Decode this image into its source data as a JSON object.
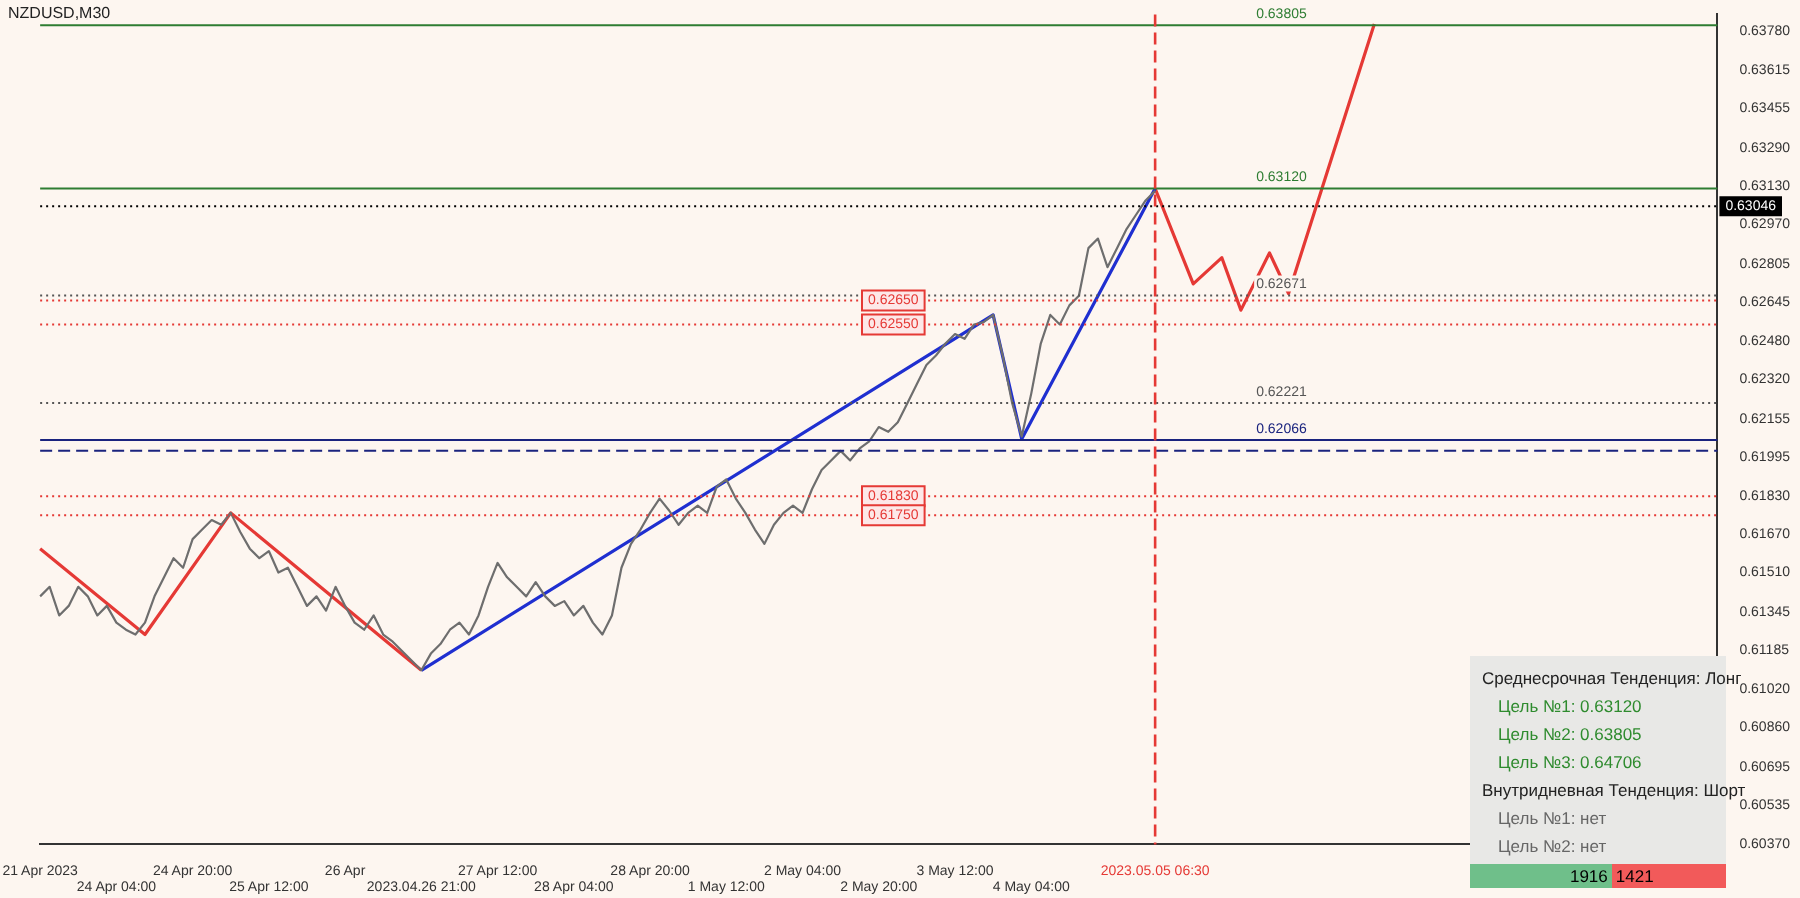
{
  "chart_data": {
    "type": "line",
    "title": "NZDUSD,M30",
    "categories": [
      "21 Apr 2023",
      null,
      null,
      null,
      null,
      null,
      null,
      null,
      "24 Apr 04:00",
      null,
      null,
      null,
      null,
      null,
      null,
      null,
      "24 Apr 20:00",
      null,
      null,
      null,
      null,
      null,
      null,
      null,
      "25 Apr 12:00",
      null,
      null,
      null,
      null,
      null,
      null,
      null,
      "26 Apr",
      null,
      null,
      null,
      null,
      null,
      null,
      null,
      "2023.04.26 21:00",
      null,
      null,
      null,
      null,
      null,
      null,
      null,
      "27 Apr 12:00",
      null,
      null,
      null,
      null,
      null,
      null,
      null,
      "28 Apr 04:00",
      null,
      null,
      null,
      null,
      null,
      null,
      null,
      "28 Apr 20:00",
      null,
      null,
      null,
      null,
      null,
      null,
      null,
      "1 May 12:00",
      null,
      null,
      null,
      null,
      null,
      null,
      null,
      "2 May 04:00",
      null,
      null,
      null,
      null,
      null,
      null,
      null,
      "2 May 20:00",
      null,
      null,
      null,
      null,
      null,
      null,
      null,
      "3 May 12:00",
      null,
      null,
      null,
      null,
      null,
      null,
      null,
      "4 May 04:00",
      null,
      null,
      null,
      null,
      null,
      null,
      null,
      null,
      null,
      null,
      null,
      null,
      "2023.05.05 06:30",
      null,
      null,
      null,
      null,
      null,
      null,
      null,
      null,
      null,
      null,
      null,
      null,
      null,
      null,
      null,
      null,
      null,
      null,
      null,
      null,
      null,
      null,
      null,
      null,
      null,
      null,
      null,
      null,
      null,
      null,
      null,
      null,
      null,
      null,
      null,
      null,
      null,
      null,
      null,
      null,
      null,
      null,
      null,
      null,
      null,
      null,
      null,
      null,
      null,
      null,
      null,
      null,
      null,
      null,
      null,
      null,
      null,
      null,
      null
    ],
    "series": [
      {
        "color": "#6e6e6e",
        "values": [
          0.6141,
          0.6145,
          0.6133,
          0.6137,
          0.6145,
          0.6141,
          0.6133,
          0.6137,
          0.613,
          0.6127,
          0.6125,
          0.613,
          0.6141,
          0.6149,
          0.6157,
          0.6153,
          0.6165,
          0.6169,
          0.6173,
          0.6171,
          0.6176,
          0.6168,
          0.6161,
          0.6157,
          0.616,
          0.6151,
          0.6153,
          0.6145,
          0.6137,
          0.6141,
          0.6135,
          0.6145,
          0.6137,
          0.613,
          0.6127,
          0.6133,
          0.6125,
          0.6122,
          0.6118,
          0.6114,
          0.611,
          0.6117,
          0.6121,
          0.6127,
          0.613,
          0.6125,
          0.6133,
          0.6145,
          0.6155,
          0.6149,
          0.6145,
          0.6141,
          0.6147,
          0.6141,
          0.6137,
          0.6139,
          0.6133,
          0.6137,
          0.613,
          0.6125,
          0.6133,
          0.6153,
          0.6163,
          0.6169,
          0.6176,
          0.6182,
          0.6177,
          0.6171,
          0.6176,
          0.6179,
          0.6176,
          0.6187,
          0.619,
          0.6182,
          0.6176,
          0.6169,
          0.6163,
          0.6171,
          0.6176,
          0.6179,
          0.6176,
          0.6186,
          0.6194,
          0.6198,
          0.6202,
          0.6198,
          0.6203,
          0.6206,
          0.6212,
          0.621,
          0.6214,
          0.6222,
          0.623,
          0.6238,
          0.6242,
          0.6247,
          0.6251,
          0.6249,
          0.6255,
          0.6256,
          0.6259,
          0.6242,
          0.6222,
          0.6208,
          0.6226,
          0.6247,
          0.6259,
          0.6255,
          0.6263,
          0.6267,
          0.6287,
          0.6291,
          0.6279,
          0.6287,
          0.6295,
          0.6301,
          0.6307,
          0.6311,
          null,
          null,
          null,
          null,
          null,
          null,
          null,
          null,
          null,
          null,
          null,
          null,
          null,
          null,
          null,
          null,
          null,
          null,
          null,
          null,
          null,
          null,
          null,
          null,
          null,
          null,
          null,
          null,
          null,
          null,
          null,
          null,
          null,
          null,
          null,
          null,
          null,
          null,
          null,
          null,
          null,
          null,
          null,
          null,
          null,
          null,
          null,
          null,
          null,
          null,
          null,
          null,
          null,
          null,
          null,
          null,
          null,
          null,
          null
        ]
      },
      {
        "color": "#e53935",
        "values": [
          0.6161,
          null,
          null,
          null,
          null,
          null,
          null,
          null,
          null,
          null,
          null,
          0.6125,
          null,
          null,
          null,
          null,
          null,
          null,
          null,
          null,
          0.6176,
          null,
          null,
          null,
          null,
          null,
          null,
          null,
          null,
          null,
          null,
          null,
          null,
          null,
          null,
          null,
          null,
          null,
          null,
          null,
          0.611,
          null,
          null,
          null,
          null,
          null,
          null,
          null,
          null,
          null,
          null,
          null,
          null,
          null,
          null,
          null,
          null,
          null,
          null,
          null,
          null,
          null,
          null,
          null,
          null,
          null,
          null,
          null,
          null,
          null,
          null,
          null,
          null,
          null,
          null,
          null,
          null,
          null,
          null,
          null,
          null,
          null,
          null,
          null,
          null,
          null,
          null,
          null,
          null,
          null,
          null,
          null,
          null,
          null,
          null,
          null,
          null,
          null,
          null,
          null,
          null,
          null,
          null,
          null,
          null,
          null,
          null,
          null,
          null,
          null,
          null,
          null,
          null,
          null,
          null,
          null,
          null,
          null,
          null,
          null,
          null,
          null,
          null,
          null,
          null,
          null,
          null,
          null,
          null,
          null,
          null,
          null,
          null,
          null,
          null,
          null,
          null,
          null,
          null,
          null,
          null,
          null,
          null,
          null,
          null,
          null,
          null,
          null,
          null,
          null,
          null,
          null,
          null,
          null,
          null,
          null,
          null,
          null,
          null,
          null,
          null,
          null,
          null,
          null,
          null,
          null,
          null,
          null,
          null,
          null,
          null,
          null,
          null,
          null,
          null,
          null,
          null
        ]
      },
      {
        "color": "#1f2fd0",
        "values": [
          null,
          null,
          null,
          null,
          null,
          null,
          null,
          null,
          null,
          null,
          null,
          null,
          null,
          null,
          null,
          null,
          null,
          null,
          null,
          null,
          null,
          null,
          null,
          null,
          null,
          null,
          null,
          null,
          null,
          null,
          null,
          null,
          null,
          null,
          null,
          null,
          null,
          null,
          null,
          null,
          0.611,
          null,
          null,
          null,
          null,
          null,
          null,
          null,
          null,
          null,
          null,
          null,
          null,
          null,
          null,
          null,
          null,
          null,
          null,
          null,
          null,
          null,
          null,
          null,
          null,
          null,
          null,
          null,
          null,
          null,
          null,
          null,
          null,
          null,
          null,
          null,
          null,
          null,
          null,
          null,
          null,
          null,
          null,
          null,
          null,
          null,
          null,
          null,
          null,
          null,
          null,
          null,
          null,
          null,
          null,
          null,
          null,
          null,
          null,
          null,
          0.6259,
          null,
          null,
          0.6207,
          null,
          null,
          null,
          null,
          null,
          null,
          null,
          null,
          null,
          null,
          null,
          null,
          null,
          0.6312,
          null,
          null,
          null,
          null,
          null,
          null,
          null,
          null,
          null,
          null,
          null,
          null,
          null,
          null,
          null,
          null,
          null,
          null,
          null,
          null,
          null,
          null,
          null,
          null,
          null,
          null,
          null,
          null,
          null,
          null,
          null,
          null,
          null,
          null,
          null,
          null,
          null,
          null,
          null,
          null,
          null,
          null,
          null,
          null,
          null,
          null,
          null,
          null,
          null,
          null,
          null,
          null,
          null,
          null,
          null,
          null,
          null,
          null,
          null
        ]
      },
      {
        "color": "#e53935",
        "values": [
          null,
          null,
          null,
          null,
          null,
          null,
          null,
          null,
          null,
          null,
          null,
          null,
          null,
          null,
          null,
          null,
          null,
          null,
          null,
          null,
          null,
          null,
          null,
          null,
          null,
          null,
          null,
          null,
          null,
          null,
          null,
          null,
          null,
          null,
          null,
          null,
          null,
          null,
          null,
          null,
          null,
          null,
          null,
          null,
          null,
          null,
          null,
          null,
          null,
          null,
          null,
          null,
          null,
          null,
          null,
          null,
          null,
          null,
          null,
          null,
          null,
          null,
          null,
          null,
          null,
          null,
          null,
          null,
          null,
          null,
          null,
          null,
          null,
          null,
          null,
          null,
          null,
          null,
          null,
          null,
          null,
          null,
          null,
          null,
          null,
          null,
          null,
          null,
          null,
          null,
          null,
          null,
          null,
          null,
          null,
          null,
          null,
          null,
          null,
          null,
          null,
          null,
          null,
          null,
          null,
          null,
          null,
          null,
          null,
          null,
          null,
          null,
          null,
          null,
          null,
          null,
          null,
          0.6312,
          null,
          null,
          null,
          0.6272,
          null,
          null,
          0.6283,
          null,
          0.6261,
          null,
          null,
          0.6285,
          null,
          0.6268,
          null,
          null,
          null,
          null,
          null,
          null,
          null,
          null,
          0.6381,
          null,
          null,
          null,
          null,
          null,
          null,
          null,
          null,
          null,
          null,
          null,
          null,
          null,
          null,
          null,
          null,
          null,
          null,
          null,
          null,
          null,
          null,
          null,
          null,
          null,
          null,
          null,
          null,
          null,
          null,
          null,
          null,
          null,
          null,
          null,
          null
        ]
      }
    ],
    "ylim": [
      0.6037,
      0.6385
    ],
    "yticks": [
      {
        "value": 0.6378,
        "label": "0.63780"
      },
      {
        "value": 0.63615,
        "label": "0.63615"
      },
      {
        "value": 0.63455,
        "label": "0.63455"
      },
      {
        "value": 0.6329,
        "label": "0.63290"
      },
      {
        "value": 0.6313,
        "label": "0.63130"
      },
      {
        "value": 0.6297,
        "label": "0.62970"
      },
      {
        "value": 0.62805,
        "label": "0.62805"
      },
      {
        "value": 0.62645,
        "label": "0.62645"
      },
      {
        "value": 0.6248,
        "label": "0.62480"
      },
      {
        "value": 0.6232,
        "label": "0.62320"
      },
      {
        "value": 0.62155,
        "label": "0.62155"
      },
      {
        "value": 0.61995,
        "label": "0.61995"
      },
      {
        "value": 0.6183,
        "label": "0.61830"
      },
      {
        "value": 0.6167,
        "label": "0.61670"
      },
      {
        "value": 0.6151,
        "label": "0.61510"
      },
      {
        "value": 0.61345,
        "label": "0.61345"
      },
      {
        "value": 0.61185,
        "label": "0.61185"
      },
      {
        "value": 0.6102,
        "label": "0.61020"
      },
      {
        "value": 0.6086,
        "label": "0.60860"
      },
      {
        "value": 0.60695,
        "label": "0.60695"
      },
      {
        "value": 0.60535,
        "label": "0.60535"
      },
      {
        "value": 0.6037,
        "label": "0.60370"
      }
    ],
    "ref_lines": [
      {
        "axis": "y",
        "value": 0.63805,
        "label": "0.63805",
        "color": "#2e7d32"
      },
      {
        "axis": "y",
        "value": 0.6312,
        "label": "0.63120",
        "color": "#2e7d32"
      },
      {
        "axis": "y",
        "value": 0.63046,
        "label": "0.63046",
        "color": "#000000",
        "line_style": "dotted"
      },
      {
        "axis": "y",
        "value": 0.62671,
        "label": "0.62671",
        "color": "#555555",
        "line_style": "dotted"
      },
      {
        "axis": "y",
        "value": 0.62221,
        "label": "0.62221",
        "color": "#555555",
        "line_style": "dotted"
      },
      {
        "axis": "y",
        "value": 0.62066,
        "label": "0.62066",
        "color": "#1a237e"
      },
      {
        "axis": "y",
        "value": 0.6202,
        "color": "#1a237e",
        "line_style": "dashed"
      },
      {
        "axis": "y",
        "value": 0.6265,
        "label": "0.62650",
        "color": "#e53935",
        "line_style": "dotted"
      },
      {
        "axis": "y",
        "value": 0.6255,
        "label": "0.62550",
        "color": "#e53935",
        "line_style": "dotted"
      },
      {
        "axis": "y",
        "value": 0.6183,
        "label": "0.61830",
        "color": "#e53935",
        "line_style": "dotted"
      },
      {
        "axis": "y",
        "value": 0.6175,
        "label": "0.61750",
        "color": "#e53935",
        "line_style": "dotted"
      },
      {
        "axis": "x",
        "value": "2023.05.05 06:30",
        "color": "#e53935",
        "line_style": "dashed"
      }
    ],
    "annotations": [
      "Среднесрочная Тенденция: Лонг",
      "Цель №1: 0.63120",
      "Цель №2: 0.63805",
      "Цель №3: 0.64706",
      "Внутридневная Тенденция: Шорт",
      "Цель №1: нет",
      "Цель №2: нет",
      "1916",
      "1421"
    ],
    "legend": false
  }
}
